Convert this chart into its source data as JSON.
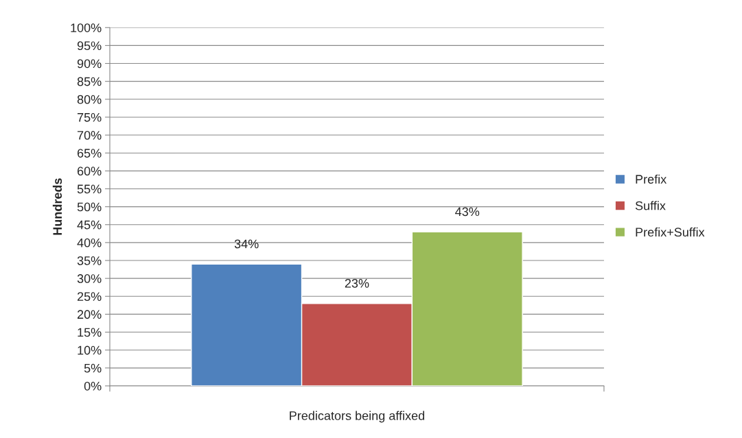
{
  "chart_data": {
    "type": "bar",
    "ylabel": "Hundreds",
    "categories": [
      "Predicators being affixed"
    ],
    "series": [
      {
        "name": "Prefix",
        "color": "#4f81bd",
        "values": [
          34
        ],
        "value_labels": [
          "34%"
        ]
      },
      {
        "name": "Suffix",
        "color": "#c0504d",
        "values": [
          23
        ],
        "value_labels": [
          "23%"
        ]
      },
      {
        "name": "Prefix+Suffix",
        "color": "#9bbb59",
        "values": [
          43
        ],
        "value_labels": [
          "43%"
        ]
      }
    ],
    "ylim": [
      0,
      100
    ],
    "yticks": [
      {
        "value": 0,
        "label": "0%"
      },
      {
        "value": 5,
        "label": "5%"
      },
      {
        "value": 10,
        "label": "10%"
      },
      {
        "value": 15,
        "label": "15%"
      },
      {
        "value": 20,
        "label": "20%"
      },
      {
        "value": 25,
        "label": "25%"
      },
      {
        "value": 30,
        "label": "30%"
      },
      {
        "value": 35,
        "label": "35%"
      },
      {
        "value": 40,
        "label": "40%"
      },
      {
        "value": 45,
        "label": "45%"
      },
      {
        "value": 50,
        "label": "50%"
      },
      {
        "value": 55,
        "label": "55%"
      },
      {
        "value": 60,
        "label": "60%"
      },
      {
        "value": 65,
        "label": "65%"
      },
      {
        "value": 70,
        "label": "70%"
      },
      {
        "value": 75,
        "label": "75%"
      },
      {
        "value": 80,
        "label": "80%"
      },
      {
        "value": 85,
        "label": "85%"
      },
      {
        "value": 90,
        "label": "90%"
      },
      {
        "value": 95,
        "label": "95%"
      },
      {
        "value": 100,
        "label": "100%"
      }
    ],
    "grid": "y",
    "legend": "right"
  }
}
